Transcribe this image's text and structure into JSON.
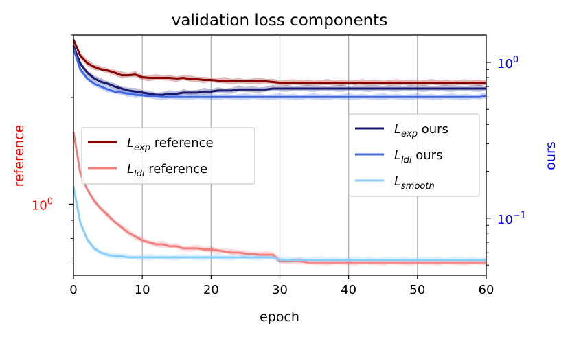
{
  "chart_data": {
    "type": "line",
    "title": "validation loss components",
    "xlabel": "epoch",
    "ylabel_left": "reference",
    "ylabel_right": "ours",
    "xlim": [
      0,
      60
    ],
    "x_ticks": [
      0,
      10,
      20,
      30,
      40,
      50,
      60
    ],
    "left_axis": {
      "scale": "log",
      "ylim": [
        0.63,
        3.0
      ],
      "tick_label": "10^0",
      "tick_value": 1.0,
      "color": "#ff0000"
    },
    "right_axis": {
      "scale": "log",
      "ylim": [
        0.043,
        1.5
      ],
      "ticks": [
        {
          "value": 1.0,
          "label": "10^0"
        },
        {
          "value": 0.1,
          "label": "10^−1"
        }
      ],
      "color": "#0000ff"
    },
    "grid": "x",
    "x": [
      0,
      1,
      2,
      3,
      4,
      5,
      6,
      7,
      8,
      9,
      10,
      11,
      12,
      13,
      14,
      15,
      16,
      17,
      18,
      19,
      20,
      21,
      22,
      23,
      24,
      25,
      26,
      27,
      28,
      29,
      30,
      31,
      32,
      33,
      34,
      35,
      36,
      37,
      38,
      39,
      40,
      41,
      42,
      43,
      44,
      45,
      46,
      47,
      48,
      49,
      50,
      51,
      52,
      53,
      54,
      55,
      56,
      57,
      58,
      59,
      60
    ],
    "series": [
      {
        "name": "L_exp reference",
        "legend": {
          "main": "L",
          "sub": "exp",
          "rest": " reference"
        },
        "axis": "left",
        "color": "#8b0000",
        "values": [
          2.91,
          2.62,
          2.5,
          2.44,
          2.4,
          2.38,
          2.35,
          2.31,
          2.31,
          2.32,
          2.28,
          2.27,
          2.27,
          2.27,
          2.27,
          2.26,
          2.27,
          2.25,
          2.25,
          2.24,
          2.24,
          2.23,
          2.23,
          2.22,
          2.22,
          2.22,
          2.22,
          2.22,
          2.22,
          2.21,
          2.2,
          2.2,
          2.2,
          2.2,
          2.2,
          2.2,
          2.2,
          2.2,
          2.2,
          2.2,
          2.2,
          2.2,
          2.2,
          2.2,
          2.2,
          2.2,
          2.2,
          2.2,
          2.2,
          2.2,
          2.2,
          2.2,
          2.2,
          2.2,
          2.2,
          2.2,
          2.2,
          2.2,
          2.2,
          2.2,
          2.2
        ]
      },
      {
        "name": "L_ldl reference",
        "legend": {
          "main": "L",
          "sub": "ldl",
          "rest": " reference"
        },
        "axis": "left",
        "color": "#f08080",
        "values": [
          1.6,
          1.22,
          1.1,
          1.02,
          0.97,
          0.93,
          0.89,
          0.86,
          0.83,
          0.81,
          0.79,
          0.78,
          0.77,
          0.77,
          0.76,
          0.76,
          0.75,
          0.75,
          0.75,
          0.745,
          0.745,
          0.74,
          0.735,
          0.73,
          0.73,
          0.725,
          0.725,
          0.72,
          0.72,
          0.72,
          0.69,
          0.69,
          0.69,
          0.69,
          0.685,
          0.685,
          0.685,
          0.685,
          0.685,
          0.685,
          0.685,
          0.685,
          0.685,
          0.685,
          0.685,
          0.685,
          0.685,
          0.685,
          0.685,
          0.685,
          0.685,
          0.685,
          0.685,
          0.685,
          0.685,
          0.685,
          0.685,
          0.685,
          0.685,
          0.685,
          0.685
        ]
      },
      {
        "name": "L_exp ours",
        "legend": {
          "main": "L",
          "sub": "exp",
          "rest": " ours"
        },
        "axis": "right",
        "color": "#191970",
        "values": [
          1.28,
          0.98,
          0.86,
          0.79,
          0.75,
          0.73,
          0.7,
          0.68,
          0.66,
          0.65,
          0.64,
          0.63,
          0.62,
          0.62,
          0.63,
          0.63,
          0.64,
          0.64,
          0.64,
          0.65,
          0.65,
          0.66,
          0.66,
          0.66,
          0.67,
          0.67,
          0.67,
          0.67,
          0.67,
          0.68,
          0.68,
          0.68,
          0.68,
          0.68,
          0.68,
          0.68,
          0.68,
          0.68,
          0.68,
          0.68,
          0.68,
          0.68,
          0.68,
          0.68,
          0.68,
          0.68,
          0.68,
          0.68,
          0.68,
          0.68,
          0.68,
          0.68,
          0.68,
          0.68,
          0.68,
          0.68,
          0.68,
          0.68,
          0.68,
          0.68,
          0.68
        ]
      },
      {
        "name": "L_ldl ours",
        "legend": {
          "main": "L",
          "sub": "ldl",
          "rest": " ours"
        },
        "axis": "right",
        "color": "#4169e1",
        "values": [
          1.23,
          0.9,
          0.79,
          0.73,
          0.7,
          0.67,
          0.65,
          0.64,
          0.63,
          0.62,
          0.615,
          0.61,
          0.605,
          0.6,
          0.6,
          0.6,
          0.6,
          0.6,
          0.6,
          0.6,
          0.6,
          0.6,
          0.6,
          0.6,
          0.6,
          0.6,
          0.6,
          0.6,
          0.6,
          0.6,
          0.6,
          0.6,
          0.6,
          0.6,
          0.6,
          0.6,
          0.6,
          0.6,
          0.6,
          0.6,
          0.6,
          0.6,
          0.6,
          0.6,
          0.6,
          0.6,
          0.6,
          0.6,
          0.6,
          0.6,
          0.6,
          0.6,
          0.6,
          0.6,
          0.6,
          0.6,
          0.6,
          0.6,
          0.6,
          0.6,
          0.61
        ]
      },
      {
        "name": "L_smooth",
        "legend": {
          "main": "L",
          "sub": "smooth",
          "rest": ""
        },
        "axis": "right",
        "color": "#87cefa",
        "values": [
          0.16,
          0.093,
          0.073,
          0.064,
          0.06,
          0.058,
          0.057,
          0.057,
          0.056,
          0.056,
          0.056,
          0.056,
          0.056,
          0.056,
          0.056,
          0.056,
          0.056,
          0.056,
          0.056,
          0.056,
          0.056,
          0.056,
          0.056,
          0.056,
          0.056,
          0.056,
          0.056,
          0.056,
          0.056,
          0.056,
          0.054,
          0.054,
          0.054,
          0.054,
          0.054,
          0.054,
          0.054,
          0.054,
          0.054,
          0.054,
          0.054,
          0.054,
          0.054,
          0.054,
          0.054,
          0.054,
          0.054,
          0.054,
          0.054,
          0.054,
          0.054,
          0.054,
          0.054,
          0.054,
          0.054,
          0.054,
          0.054,
          0.054,
          0.054,
          0.054,
          0.054
        ]
      }
    ],
    "legends": [
      {
        "placement": "center-left",
        "entries": [
          "L_exp reference",
          "L_ldl reference"
        ]
      },
      {
        "placement": "center-right",
        "entries": [
          "L_exp ours",
          "L_ldl ours",
          "L_smooth"
        ]
      }
    ]
  }
}
